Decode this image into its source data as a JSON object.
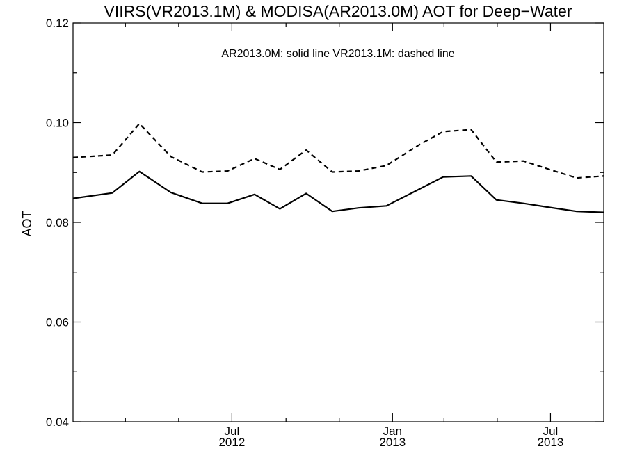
{
  "chart_data": {
    "type": "line",
    "title": "VIIRS(VR2013.1M) & MODISA(AR2013.0M)  AOT for Deep−Water",
    "ylabel": "AOT",
    "xlabel": "",
    "annotation": "AR2013.0M: solid line   VR2013.1M: dashed line",
    "ylim": [
      0.04,
      0.12
    ],
    "xlim": [
      "2012-01-01",
      "2013-08-31"
    ],
    "y_ticks": [
      "0.04",
      "0.06",
      "0.08",
      "0.10",
      "0.12"
    ],
    "x_ticks": [
      {
        "date": "2012-07-01",
        "month": "Jul",
        "year": "2012"
      },
      {
        "date": "2013-01-01",
        "month": "Jan",
        "year": "2013"
      },
      {
        "date": "2013-07-01",
        "month": "Jul",
        "year": "2013"
      }
    ],
    "grid": false,
    "series": [
      {
        "style": "solid",
        "color": "#000000",
        "points": [
          {
            "x": "2012-01-01",
            "y": 0.0848
          },
          {
            "x": "2012-02-15",
            "y": 0.0859
          },
          {
            "x": "2012-03-17",
            "y": 0.0902
          },
          {
            "x": "2012-04-22",
            "y": 0.086
          },
          {
            "x": "2012-05-28",
            "y": 0.0838
          },
          {
            "x": "2012-06-26",
            "y": 0.0838
          },
          {
            "x": "2012-07-27",
            "y": 0.0856
          },
          {
            "x": "2012-08-25",
            "y": 0.0827
          },
          {
            "x": "2012-09-24",
            "y": 0.0858
          },
          {
            "x": "2012-10-24",
            "y": 0.0822
          },
          {
            "x": "2012-11-23",
            "y": 0.0829
          },
          {
            "x": "2012-12-25",
            "y": 0.0833
          },
          {
            "x": "2013-01-31",
            "y": 0.0866
          },
          {
            "x": "2013-02-28",
            "y": 0.0891
          },
          {
            "x": "2013-04-01",
            "y": 0.0893
          },
          {
            "x": "2013-04-30",
            "y": 0.0845
          },
          {
            "x": "2013-05-31",
            "y": 0.0838
          },
          {
            "x": "2013-06-30",
            "y": 0.083
          },
          {
            "x": "2013-07-31",
            "y": 0.0822
          },
          {
            "x": "2013-08-31",
            "y": 0.082
          }
        ]
      },
      {
        "style": "dashed",
        "color": "#000000",
        "points": [
          {
            "x": "2012-01-01",
            "y": 0.093
          },
          {
            "x": "2012-02-15",
            "y": 0.0935
          },
          {
            "x": "2012-03-17",
            "y": 0.0998
          },
          {
            "x": "2012-04-22",
            "y": 0.0932
          },
          {
            "x": "2012-05-28",
            "y": 0.0901
          },
          {
            "x": "2012-06-26",
            "y": 0.0903
          },
          {
            "x": "2012-07-27",
            "y": 0.0928
          },
          {
            "x": "2012-08-25",
            "y": 0.0906
          },
          {
            "x": "2012-09-24",
            "y": 0.0945
          },
          {
            "x": "2012-10-24",
            "y": 0.0901
          },
          {
            "x": "2012-11-23",
            "y": 0.0903
          },
          {
            "x": "2012-12-25",
            "y": 0.0914
          },
          {
            "x": "2013-01-31",
            "y": 0.0955
          },
          {
            "x": "2013-02-28",
            "y": 0.0982
          },
          {
            "x": "2013-04-01",
            "y": 0.0986
          },
          {
            "x": "2013-04-30",
            "y": 0.0921
          },
          {
            "x": "2013-05-31",
            "y": 0.0923
          },
          {
            "x": "2013-06-30",
            "y": 0.0906
          },
          {
            "x": "2013-07-31",
            "y": 0.0889
          },
          {
            "x": "2013-08-31",
            "y": 0.0893
          }
        ]
      }
    ]
  }
}
